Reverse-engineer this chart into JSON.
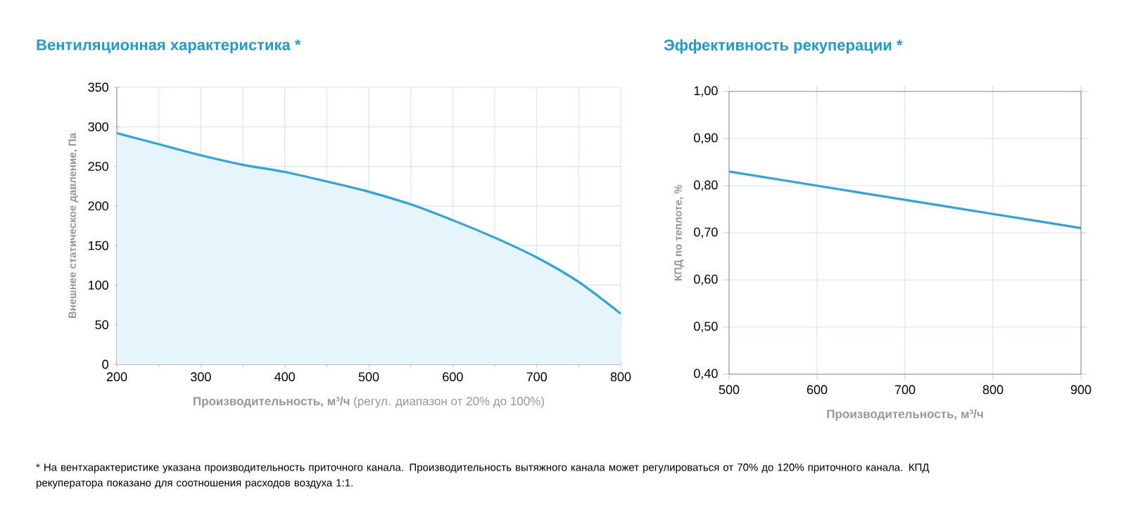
{
  "chart_data": [
    {
      "type": "area",
      "title": "Вентиляционная характеристика *",
      "xlabel": "**Производительность, м³/ч** (регул. диапазон от 20% до 100%)",
      "ylabel": "Внешнее статическое давление, Па",
      "x": [
        200,
        250,
        300,
        350,
        400,
        450,
        500,
        550,
        600,
        650,
        700,
        750,
        800
      ],
      "series": [
        {
          "color": "#2ea3e0",
          "values": [
            292,
            278,
            264,
            252,
            243,
            231,
            218,
            202,
            182,
            160,
            135,
            104,
            64
          ]
        }
      ],
      "xlim": [
        200,
        800
      ],
      "ylim": [
        0,
        350
      ],
      "xticks": [
        200,
        {
          "value": 250,
          "label": null
        },
        300,
        {
          "value": 350,
          "label": null
        },
        400,
        {
          "value": 450,
          "label": null
        },
        500,
        {
          "value": 550,
          "label": null
        },
        600,
        {
          "value": 650,
          "label": null
        },
        700,
        {
          "value": 750,
          "label": null
        },
        800
      ],
      "yticks": [
        0,
        50,
        100,
        150,
        200,
        250,
        300,
        350
      ],
      "grid": true,
      "annotations": [
        "* На вентхарактеристике указана производительность приточного канала. Производительность вытяжного канала может регулироваться от 70% до 120% приточного канала. КПД рекуператора показано для соотношения расходов воздуха 1:1."
      ]
    },
    {
      "type": "line",
      "title": "Эффективность рекуперации *",
      "xlabel": "Производительность, м³/ч",
      "ylabel": "КПД по теплоте, %",
      "x": [
        500,
        600,
        700,
        800,
        900
      ],
      "series": [
        {
          "color": "#2ea3e0",
          "values": [
            0.83,
            0.8,
            0.77,
            0.74,
            0.71
          ]
        }
      ],
      "xlim": [
        500,
        900
      ],
      "ylim": [
        0.4,
        1.0
      ],
      "xticks": [
        500,
        600,
        700,
        800,
        900
      ],
      "yticks": [
        {
          "value": 0.4,
          "label": "0,40"
        },
        {
          "value": 0.5,
          "label": "0,50"
        },
        {
          "value": 0.6,
          "label": "0,60"
        },
        {
          "value": 0.7,
          "label": "0,70"
        },
        {
          "value": 0.8,
          "label": "0,80"
        },
        {
          "value": 0.9,
          "label": "0,90"
        },
        {
          "value": 1.0,
          "label": "1,00"
        }
      ],
      "grid": true
    }
  ]
}
